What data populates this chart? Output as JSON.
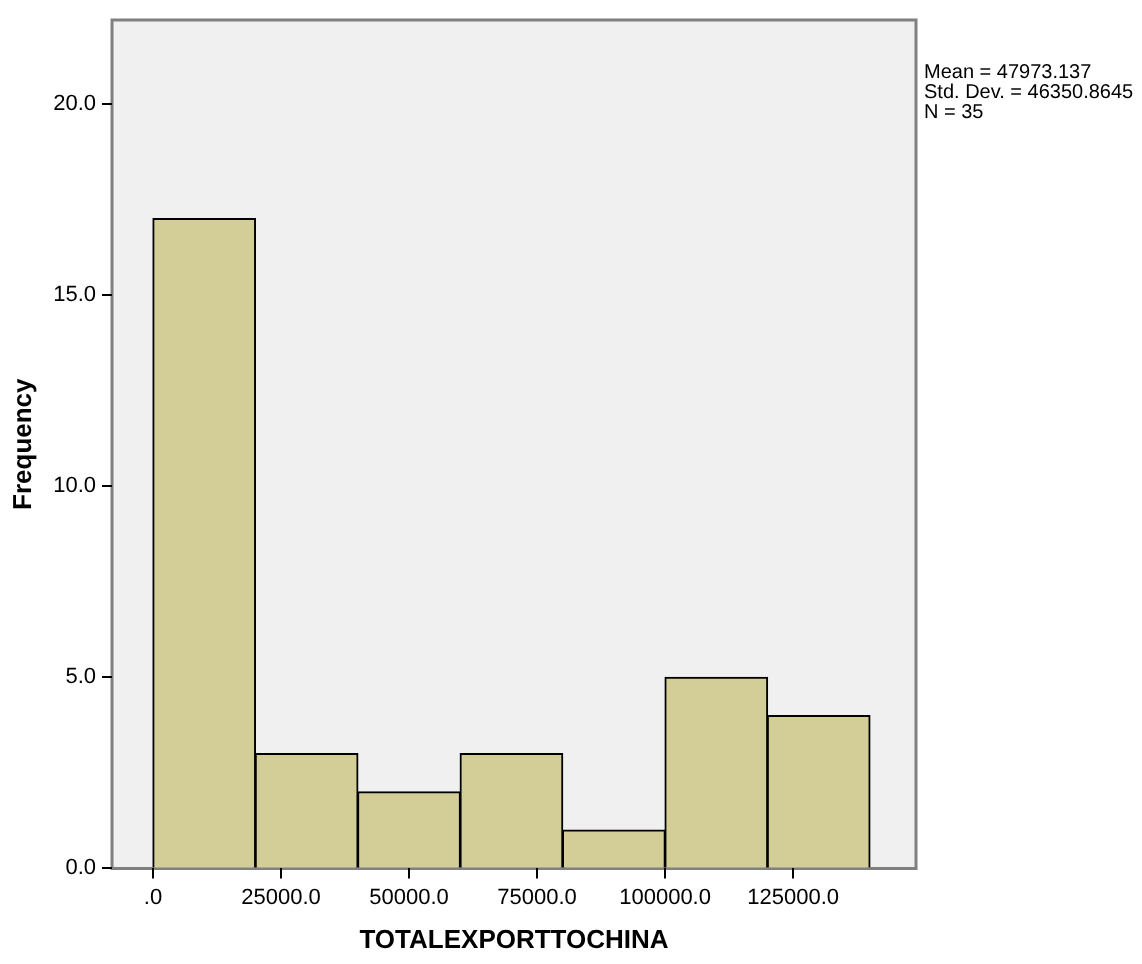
{
  "chart_data": {
    "type": "histogram",
    "xlabel": "TOTALEXPORTTOCHINA",
    "ylabel": "Frequency",
    "bins": [
      0,
      20000,
      40000,
      60000,
      80000,
      100000,
      120000,
      140000
    ],
    "values": [
      17,
      3,
      2,
      3,
      1,
      5,
      4
    ],
    "color": "#d3ce98",
    "xlim": [
      -8000,
      149000
    ],
    "xticks": [
      {
        "value": 0,
        "label": ".0"
      },
      {
        "value": 25000,
        "label": "25000.0"
      },
      {
        "value": 50000,
        "label": "50000.0"
      },
      {
        "value": 75000,
        "label": "75000.0"
      },
      {
        "value": 100000,
        "label": "100000.0"
      },
      {
        "value": 125000,
        "label": "125000.0"
      }
    ],
    "ylim": [
      0,
      22.2
    ],
    "yticks": [
      {
        "value": 0,
        "label": "0.0"
      },
      {
        "value": 5,
        "label": "5.0"
      },
      {
        "value": 10,
        "label": "10.0"
      },
      {
        "value": 15,
        "label": "15.0"
      },
      {
        "value": 20,
        "label": "20.0"
      }
    ],
    "annotations": [
      "Mean = 47973.137",
      "Std. Dev. = 46350.8645",
      "N = 35"
    ]
  }
}
